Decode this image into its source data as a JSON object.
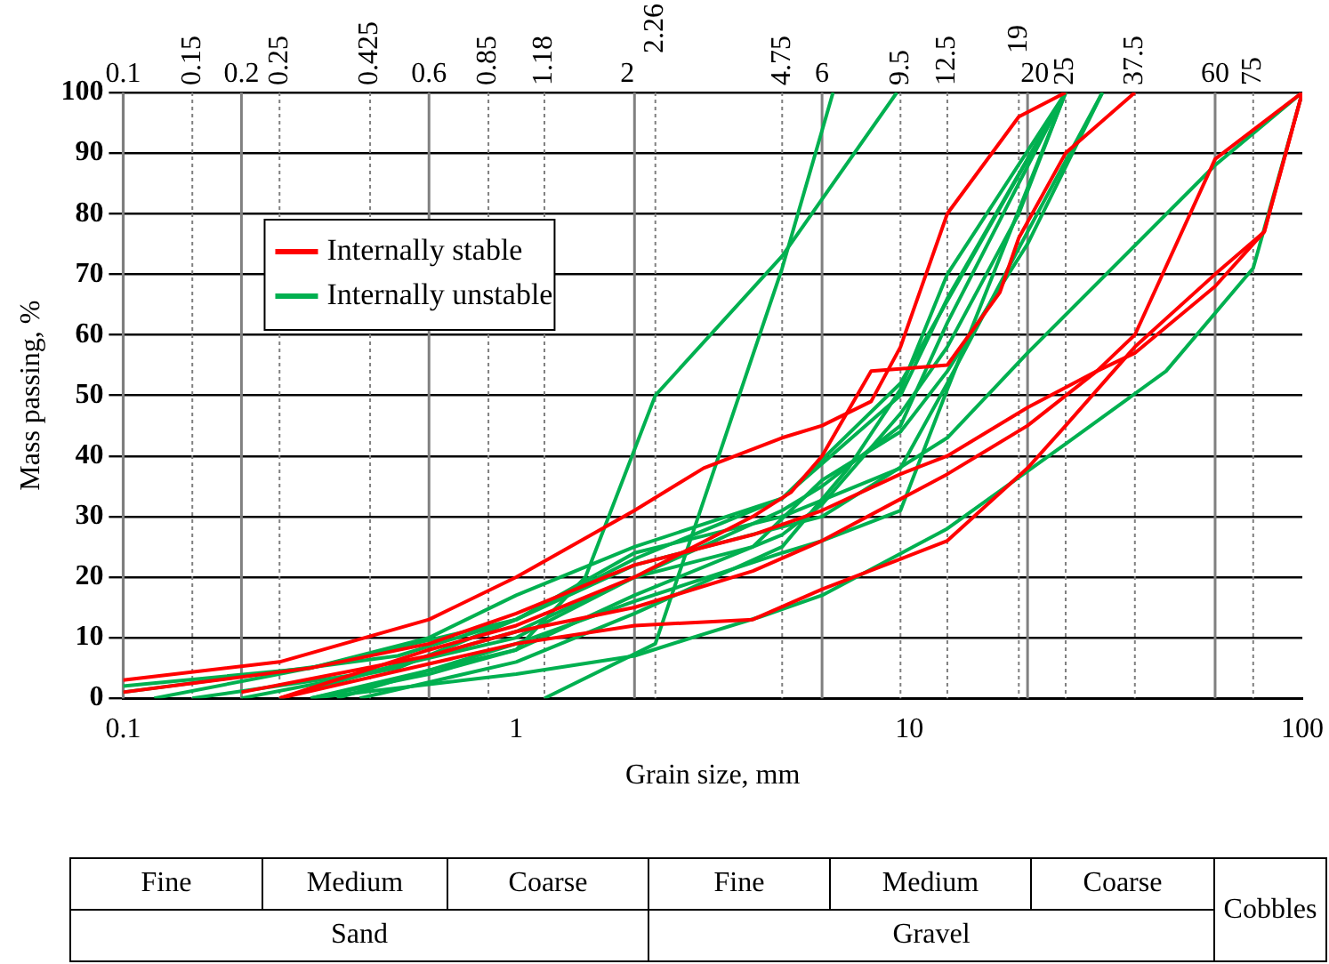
{
  "chart_data": {
    "type": "line",
    "xlabel": "Grain size, mm",
    "ylabel": "Mass passing, %",
    "log": "x",
    "xlim": [
      0.1,
      100
    ],
    "xticks": [
      0.1,
      1,
      10,
      100
    ],
    "ylim": [
      0,
      100
    ],
    "yticks": [
      0,
      10,
      20,
      30,
      40,
      50,
      60,
      70,
      80,
      90,
      100
    ],
    "grid": "y",
    "legend": "top left",
    "marker": "none",
    "line_style": "solid",
    "series": [
      {
        "name": "Internally stable",
        "color": "#ff0000",
        "x": [
          0.1,
          0.25,
          0.6,
          1,
          2,
          3,
          4.75,
          6,
          8,
          9.5,
          12.5,
          19,
          25
        ],
        "values": [
          3,
          6,
          13,
          20,
          31,
          38,
          43,
          45,
          49,
          58,
          80,
          96,
          100
        ]
      },
      {
        "color": "#ff0000",
        "x": [
          0.25,
          0.6,
          1,
          2,
          4,
          5,
          6,
          8,
          12.5,
          17,
          19,
          25,
          37.5
        ],
        "values": [
          0,
          8,
          12,
          20,
          30,
          34,
          40,
          54,
          55,
          67,
          76,
          90,
          100
        ]
      },
      {
        "color": "#ff0000",
        "x": [
          0.1,
          0.3,
          0.6,
          1,
          2,
          4,
          6,
          9.5,
          12.5,
          20,
          30,
          37.5,
          60,
          80,
          100
        ],
        "values": [
          1,
          5,
          9,
          14,
          22,
          27,
          31,
          37,
          40,
          48,
          54,
          57,
          68,
          77,
          100
        ]
      },
      {
        "color": "#ff0000",
        "x": [
          0.2,
          0.6,
          1,
          2,
          4,
          6,
          12.5,
          20,
          30,
          37.5,
          60,
          100
        ],
        "values": [
          1,
          7,
          11,
          15,
          21,
          26,
          37,
          45,
          54,
          60,
          89,
          100
        ]
      },
      {
        "color": "#ff0000",
        "x": [
          0.25,
          1,
          2,
          4,
          6,
          9.5,
          12.5,
          20,
          25,
          37.5,
          60,
          80,
          100
        ],
        "values": [
          0,
          9,
          12,
          13,
          18,
          23,
          26,
          38,
          45,
          58,
          70,
          77,
          100
        ]
      },
      {
        "name": "Internally unstable",
        "color": "#00b050",
        "x": [
          1.18,
          2.26,
          4.75,
          6.4
        ],
        "values": [
          0,
          9,
          71,
          100
        ]
      },
      {
        "color": "#00b050",
        "x": [
          0.3,
          0.6,
          1,
          1.5,
          2.26,
          4.75,
          9.3
        ],
        "values": [
          0,
          4,
          8,
          20,
          50,
          73,
          100
        ]
      },
      {
        "color": "#00b050",
        "x": [
          0.3,
          1,
          2,
          2.8,
          4.2,
          6,
          12.5,
          25,
          45,
          75,
          100
        ],
        "values": [
          0,
          4,
          7,
          10,
          13.5,
          17,
          28,
          42,
          54,
          71,
          100
        ]
      },
      {
        "color": "#00b050",
        "x": [
          0.1,
          0.5,
          1,
          2,
          6,
          12.5,
          20,
          60,
          100
        ],
        "values": [
          1,
          7,
          13,
          22,
          30,
          43,
          57,
          88,
          100
        ]
      },
      {
        "color": "#00b050",
        "x": [
          0.15,
          0.4,
          1,
          2,
          4.75,
          6,
          9.5,
          12.5,
          19,
          25
        ],
        "values": [
          0,
          4,
          10,
          20,
          31,
          35,
          45,
          62,
          85,
          100
        ]
      },
      {
        "color": "#00b050",
        "x": [
          0.2,
          0.5,
          1,
          2,
          4.75,
          9.5,
          12.5,
          25
        ],
        "values": [
          0,
          5,
          13,
          23,
          33,
          50,
          66,
          100
        ]
      },
      {
        "color": "#00b050",
        "x": [
          0.3,
          1,
          2,
          4.75,
          6,
          9.5,
          12.5,
          19,
          25
        ],
        "values": [
          0,
          8,
          17,
          27,
          32,
          47,
          58,
          80,
          100
        ]
      },
      {
        "color": "#00b050",
        "x": [
          0.4,
          1,
          2,
          4.75,
          7,
          9.5,
          12.5,
          25
        ],
        "values": [
          0,
          6,
          14,
          25,
          38,
          51,
          70,
          100
        ]
      },
      {
        "color": "#00b050",
        "x": [
          0.25,
          1,
          2,
          4,
          6,
          9.5,
          12.5,
          20,
          31
        ],
        "values": [
          0,
          11,
          20,
          25,
          36,
          44,
          54,
          75,
          100
        ]
      },
      {
        "color": "#00b050",
        "x": [
          0.12,
          0.3,
          1,
          2,
          4.75,
          9.5,
          12.5,
          20,
          31
        ],
        "values": [
          0,
          5,
          13,
          24,
          30,
          38,
          52,
          77,
          100
        ]
      },
      {
        "color": "#00b050",
        "x": [
          0.1,
          0.3,
          0.6,
          1,
          2,
          4.75,
          9.5,
          25
        ],
        "values": [
          2,
          5,
          10,
          17,
          25,
          33,
          52,
          100
        ]
      },
      {
        "color": "#00b050",
        "x": [
          0.35,
          1,
          2,
          4.75,
          6,
          9.5,
          12.5,
          25
        ],
        "values": [
          0,
          9,
          16,
          24,
          26,
          31,
          51,
          100
        ]
      }
    ],
    "ref_lines": [
      {
        "axis": "x",
        "value": 0.1,
        "label": "0.1",
        "line_style": "solid",
        "color": "#808080"
      },
      {
        "axis": "x",
        "value": 0.15,
        "label": "0.15",
        "line_style": "dotted",
        "color": "#808080"
      },
      {
        "axis": "x",
        "value": 0.2,
        "label": "0.2",
        "line_style": "solid",
        "color": "#808080"
      },
      {
        "axis": "x",
        "value": 0.25,
        "label": "0.25",
        "line_style": "dotted",
        "color": "#808080"
      },
      {
        "axis": "x",
        "value": 0.425,
        "label": "0.425",
        "line_style": "dotted",
        "color": "#808080"
      },
      {
        "axis": "x",
        "value": 0.6,
        "label": "0.6",
        "line_style": "solid",
        "color": "#808080"
      },
      {
        "axis": "x",
        "value": 0.85,
        "label": "0.85",
        "line_style": "dotted",
        "color": "#808080"
      },
      {
        "axis": "x",
        "value": 1.18,
        "label": "1.18",
        "line_style": "dotted",
        "color": "#808080"
      },
      {
        "axis": "x",
        "value": 2,
        "label": "2",
        "line_style": "solid",
        "color": "#808080"
      },
      {
        "axis": "x",
        "value": 2.26,
        "label": "2.26",
        "line_style": "dotted",
        "color": "#808080"
      },
      {
        "axis": "x",
        "value": 4.75,
        "label": "4.75",
        "line_style": "dotted",
        "color": "#808080"
      },
      {
        "axis": "x",
        "value": 6,
        "label": "6",
        "line_style": "solid",
        "color": "#808080"
      },
      {
        "axis": "x",
        "value": 9.5,
        "label": "9.5",
        "line_style": "dotted",
        "color": "#808080"
      },
      {
        "axis": "x",
        "value": 12.5,
        "label": "12.5",
        "line_style": "dotted",
        "color": "#808080"
      },
      {
        "axis": "x",
        "value": 19,
        "label": "19",
        "line_style": "dotted",
        "color": "#808080"
      },
      {
        "axis": "x",
        "value": 20,
        "label": "20",
        "line_style": "solid",
        "color": "#808080"
      },
      {
        "axis": "x",
        "value": 25,
        "label": "25",
        "line_style": "dotted",
        "color": "#808080"
      },
      {
        "axis": "x",
        "value": 37.5,
        "label": "37.5",
        "line_style": "dotted",
        "color": "#808080"
      },
      {
        "axis": "x",
        "value": 60,
        "label": "60",
        "line_style": "solid",
        "color": "#808080"
      },
      {
        "axis": "x",
        "value": 75,
        "label": "75",
        "line_style": "dotted",
        "color": "#808080"
      }
    ],
    "annotations": [
      "Fine",
      "Medium",
      "Coarse",
      "Fine",
      "Medium",
      "Coarse",
      "Cobbles",
      "Sand",
      "Gravel"
    ]
  }
}
